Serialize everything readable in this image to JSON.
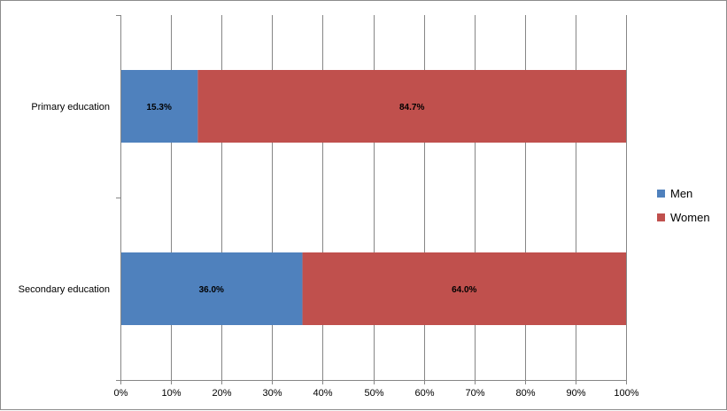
{
  "chart_data": {
    "type": "bar",
    "orientation": "horizontal",
    "stacked": "percent",
    "categories": [
      "Primary education",
      "Secondary education"
    ],
    "series": [
      {
        "name": "Men",
        "color": "#4f81bd",
        "values": [
          15.3,
          36.0
        ],
        "labels": [
          "15.3%",
          "36.0%"
        ]
      },
      {
        "name": "Women",
        "color": "#c0504d",
        "values": [
          84.7,
          64.0
        ],
        "labels": [
          "84.7%",
          "64.0%"
        ]
      }
    ],
    "xlim": [
      0,
      100
    ],
    "xticks": [
      "0%",
      "10%",
      "20%",
      "30%",
      "40%",
      "50%",
      "60%",
      "70%",
      "80%",
      "90%",
      "100%"
    ],
    "grid": "vertical",
    "legend_position": "right",
    "gridline_color": "#868686",
    "axis_color": "#868686"
  }
}
